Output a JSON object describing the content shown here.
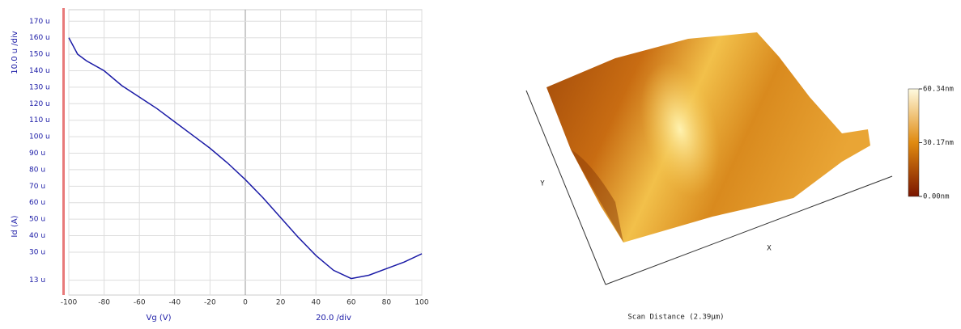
{
  "chart_data": [
    {
      "type": "line",
      "ylabel": "Id (A)",
      "ydiv": "10.0 u /div",
      "xlabel": "Vg (V)",
      "xdiv": "20.0 /div",
      "xlim": [
        -100,
        100
      ],
      "xticks": [
        -100,
        -80,
        -60,
        -40,
        -20,
        0,
        20,
        40,
        60,
        80,
        100
      ],
      "ylim": [
        4,
        177
      ],
      "yticks": [
        {
          "value": 13,
          "label": "13 u"
        },
        {
          "value": 30,
          "label": "30 u"
        },
        {
          "value": 40,
          "label": "40 u"
        },
        {
          "value": 50,
          "label": "50 u"
        },
        {
          "value": 60,
          "label": "60 u"
        },
        {
          "value": 70,
          "label": "70 u"
        },
        {
          "value": 80,
          "label": "80 u"
        },
        {
          "value": 90,
          "label": "90 u"
        },
        {
          "value": 100,
          "label": "100 u"
        },
        {
          "value": 110,
          "label": "110 u"
        },
        {
          "value": 120,
          "label": "120 u"
        },
        {
          "value": 130,
          "label": "130 u"
        },
        {
          "value": 140,
          "label": "140 u"
        },
        {
          "value": 150,
          "label": "150 u"
        },
        {
          "value": 160,
          "label": "160 u"
        },
        {
          "value": 170,
          "label": "170 u"
        }
      ],
      "grid": true,
      "x": [
        -100,
        -95,
        -90,
        -80,
        -70,
        -60,
        -50,
        -40,
        -30,
        -20,
        -10,
        0,
        10,
        20,
        30,
        40,
        50,
        60,
        70,
        80,
        90,
        100
      ],
      "series": [
        {
          "color": "#1a1aa6",
          "values": [
            160,
            150,
            146,
            140,
            131,
            124,
            117,
            109,
            101,
            93,
            84,
            74,
            63,
            51,
            39,
            28,
            19,
            14,
            16,
            20,
            24,
            29
          ]
        }
      ]
    },
    {
      "type": "surface",
      "xlabel": "X",
      "ylabel": "Y",
      "title": "Scan Distance (2.39μm)",
      "zlim": [
        0,
        60.34
      ],
      "zticks": [
        {
          "value": 60.34,
          "label": "60.34nm"
        },
        {
          "value": 30.17,
          "label": "30.17nm"
        },
        {
          "value": 0,
          "label": "0.00nm"
        }
      ]
    }
  ]
}
